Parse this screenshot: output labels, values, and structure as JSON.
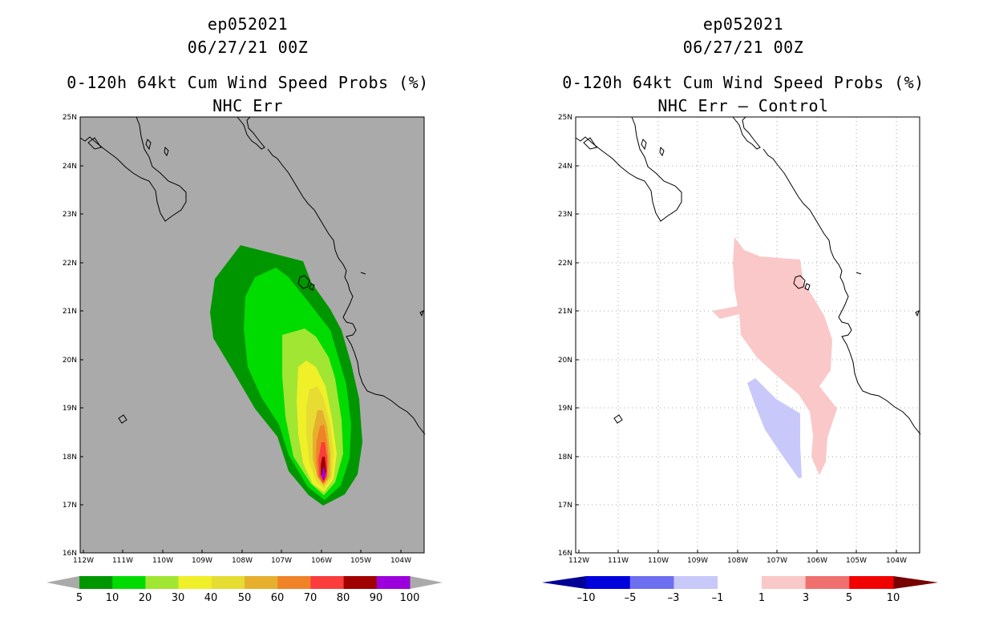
{
  "panels": [
    {
      "storm_id": "ep052021",
      "datetime": "06/27/21 00Z",
      "product": "0-120h 64kt Cum Wind Speed Probs (%)",
      "subtitle": "NHC Err"
    },
    {
      "storm_id": "ep052021",
      "datetime": "06/27/21 00Z",
      "product": "0-120h 64kt Cum Wind Speed Probs (%)",
      "subtitle": "NHC Err – Control"
    }
  ],
  "axes": {
    "lat_labels": [
      "25N",
      "24N",
      "23N",
      "22N",
      "21N",
      "20N",
      "19N",
      "18N",
      "17N",
      "16N"
    ],
    "lon_labels": [
      "112W",
      "111W",
      "110W",
      "109W",
      "108W",
      "107W",
      "106W",
      "105W",
      "104W"
    ]
  },
  "colorbar_left": {
    "labels": [
      "5",
      "10",
      "20",
      "30",
      "40",
      "50",
      "60",
      "70",
      "80",
      "90",
      "100"
    ],
    "colors": [
      "#009600",
      "#00dc00",
      "#a0e632",
      "#f0f028",
      "#e6dc32",
      "#e6af2d",
      "#f08228",
      "#fa3c3c",
      "#a00000",
      "#9b00dc"
    ],
    "end_color": "#aaaaaa"
  },
  "colorbar_right": {
    "labels": [
      "–10",
      "–5",
      "–3",
      "–1",
      "1",
      "3",
      "5",
      "10"
    ],
    "colors": [
      "#0000dc",
      "#6e6ef0",
      "#c8c8fa",
      "#ffffff",
      "#fac8c8",
      "#f07070",
      "#f00000"
    ],
    "end_low": "#000096",
    "end_high": "#780000"
  },
  "colors": {
    "map_background_left": "#aaaaaa",
    "map_background_right": "#ffffff",
    "grid": "#aaaaaa",
    "positive_diff": "#fac8c8",
    "negative_diff": "#c8c8fa"
  }
}
